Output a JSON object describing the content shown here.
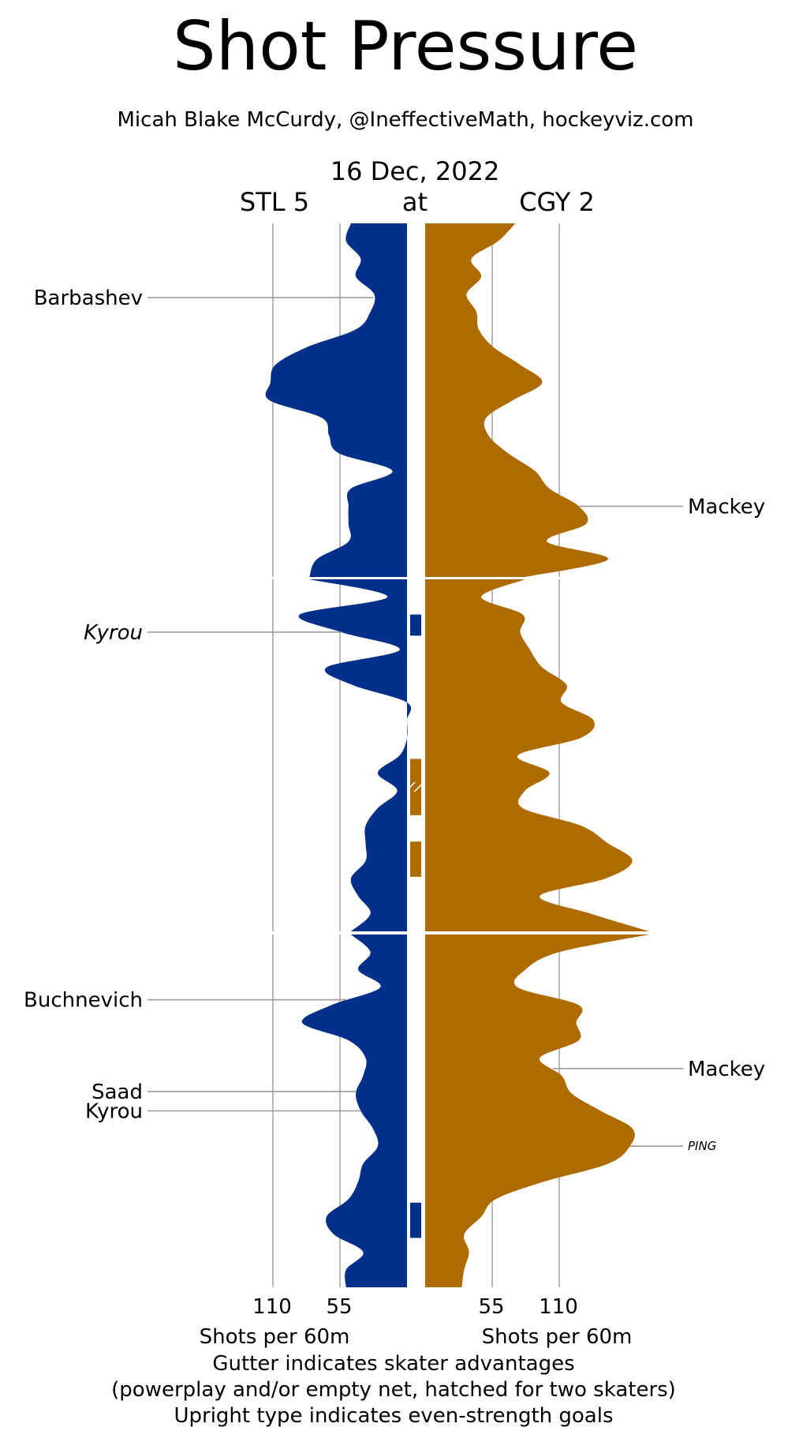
{
  "chart_data": {
    "type": "area",
    "title": "Shot Pressure",
    "subtitle": "Micah Blake McCurdy, @IneffectiveMath, hockeyviz.com",
    "date": "16 Dec, 2022",
    "away_label": "STL 5",
    "at_label": "at",
    "home_label": "CGY 2",
    "x_ticks": [
      "110",
      "55",
      "55",
      "110"
    ],
    "x_tick_values": [
      110,
      55,
      55,
      110
    ],
    "xlabel_left": "Shots per 60m",
    "xlabel_right": "Shots per 60m",
    "footnotes": [
      "Gutter indicates skater advantages",
      "(powerplay and/or empty net, hatched for two skaters)",
      "Upright type indicates even-strength goals"
    ],
    "x_range": [
      0,
      130
    ],
    "y_unit": "minutes",
    "periods": [
      [
        0,
        20
      ],
      [
        20,
        40
      ],
      [
        40,
        60
      ]
    ],
    "series": [
      {
        "name": "STL 5",
        "color": "#00308A",
        "side": "left",
        "points": [
          [
            0,
            46
          ],
          [
            1,
            50
          ],
          [
            2,
            38
          ],
          [
            3,
            42
          ],
          [
            4,
            27
          ],
          [
            5,
            30
          ],
          [
            6,
            42
          ],
          [
            7,
            82
          ],
          [
            8,
            108
          ],
          [
            9,
            112
          ],
          [
            10,
            113
          ],
          [
            11,
            70
          ],
          [
            12,
            64
          ],
          [
            13,
            56
          ],
          [
            14,
            12
          ],
          [
            15,
            46
          ],
          [
            16,
            48
          ],
          [
            17,
            48
          ],
          [
            18,
            48
          ],
          [
            19,
            74
          ],
          [
            20,
            80
          ],
          [
            21,
            16
          ],
          [
            22,
            88
          ],
          [
            23,
            54
          ],
          [
            24,
            6
          ],
          [
            25,
            66
          ],
          [
            26,
            45
          ],
          [
            27,
            0
          ],
          [
            28,
            0
          ],
          [
            29,
            0
          ],
          [
            30,
            6
          ],
          [
            31,
            24
          ],
          [
            32,
            8
          ],
          [
            33,
            24
          ],
          [
            34,
            34
          ],
          [
            35,
            34
          ],
          [
            36,
            34
          ],
          [
            37,
            46
          ],
          [
            38,
            40
          ],
          [
            39,
            30
          ],
          [
            40,
            46
          ],
          [
            41,
            30
          ],
          [
            42,
            40
          ],
          [
            43,
            22
          ],
          [
            44,
            62
          ],
          [
            45,
            86
          ],
          [
            46,
            48
          ],
          [
            47,
            34
          ],
          [
            48,
            36
          ],
          [
            49,
            42
          ],
          [
            50,
            38
          ],
          [
            51,
            28
          ],
          [
            52,
            24
          ],
          [
            53,
            36
          ],
          [
            54,
            40
          ],
          [
            55,
            48
          ],
          [
            56,
            66
          ],
          [
            57,
            60
          ],
          [
            58,
            36
          ],
          [
            59,
            50
          ],
          [
            60,
            50
          ]
        ]
      },
      {
        "name": "CGY 2",
        "color": "#AE6B00",
        "side": "right",
        "points": [
          [
            0,
            74
          ],
          [
            1,
            60
          ],
          [
            2,
            38
          ],
          [
            3,
            46
          ],
          [
            4,
            34
          ],
          [
            5,
            42
          ],
          [
            6,
            44
          ],
          [
            7,
            56
          ],
          [
            8,
            78
          ],
          [
            9,
            96
          ],
          [
            10,
            72
          ],
          [
            11,
            50
          ],
          [
            12,
            52
          ],
          [
            13,
            68
          ],
          [
            14,
            90
          ],
          [
            15,
            102
          ],
          [
            16,
            126
          ],
          [
            17,
            132
          ],
          [
            18,
            100
          ],
          [
            19,
            150
          ],
          [
            20,
            82
          ],
          [
            21,
            46
          ],
          [
            22,
            80
          ],
          [
            23,
            78
          ],
          [
            24,
            86
          ],
          [
            25,
            96
          ],
          [
            26,
            116
          ],
          [
            27,
            112
          ],
          [
            28,
            138
          ],
          [
            29,
            128
          ],
          [
            30,
            76
          ],
          [
            31,
            102
          ],
          [
            32,
            82
          ],
          [
            33,
            80
          ],
          [
            34,
            128
          ],
          [
            35,
            150
          ],
          [
            36,
            170
          ],
          [
            37,
            148
          ],
          [
            38,
            94
          ],
          [
            39,
            136
          ],
          [
            40,
            184
          ],
          [
            41,
            110
          ],
          [
            42,
            82
          ],
          [
            43,
            76
          ],
          [
            44,
            126
          ],
          [
            45,
            124
          ],
          [
            46,
            126
          ],
          [
            47,
            94
          ],
          [
            48,
            112
          ],
          [
            49,
            120
          ],
          [
            50,
            144
          ],
          [
            51,
            170
          ],
          [
            52,
            168
          ],
          [
            53,
            150
          ],
          [
            54,
            98
          ],
          [
            55,
            58
          ],
          [
            56,
            46
          ],
          [
            57,
            32
          ],
          [
            58,
            36
          ],
          [
            59,
            32
          ],
          [
            60,
            30
          ]
        ]
      }
    ],
    "gutter": [
      {
        "team": "STL 5",
        "start": 22.0,
        "end": 23.2,
        "hatched": false
      },
      {
        "team": "CGY 2",
        "start": 30.2,
        "end": 33.4,
        "hatched": true
      },
      {
        "team": "CGY 2",
        "start": 34.9,
        "end": 36.9,
        "hatched": false
      },
      {
        "team": "STL 5",
        "start": 55.2,
        "end": 57.2,
        "hatched": false
      }
    ],
    "goals": [
      {
        "team": "STL 5",
        "player": "Barbashev",
        "time": 4.2,
        "even_strength": true
      },
      {
        "team": "CGY 2",
        "player": "Mackey",
        "time": 16.0,
        "even_strength": true
      },
      {
        "team": "STL 5",
        "player": "Kyrou",
        "time": 23.0,
        "even_strength": false
      },
      {
        "team": "STL 5",
        "player": "Buchnevich",
        "time": 43.7,
        "even_strength": true
      },
      {
        "team": "CGY 2",
        "player": "Mackey",
        "time": 47.6,
        "even_strength": true
      },
      {
        "team": "STL 5",
        "player": "Saad",
        "time": 48.9,
        "even_strength": true
      },
      {
        "team": "STL 5",
        "player": "Kyrou",
        "time": 50.0,
        "even_strength": true
      },
      {
        "team": "CGY 2",
        "player": "PING",
        "time": 52.0,
        "even_strength": true,
        "small": true
      }
    ]
  }
}
